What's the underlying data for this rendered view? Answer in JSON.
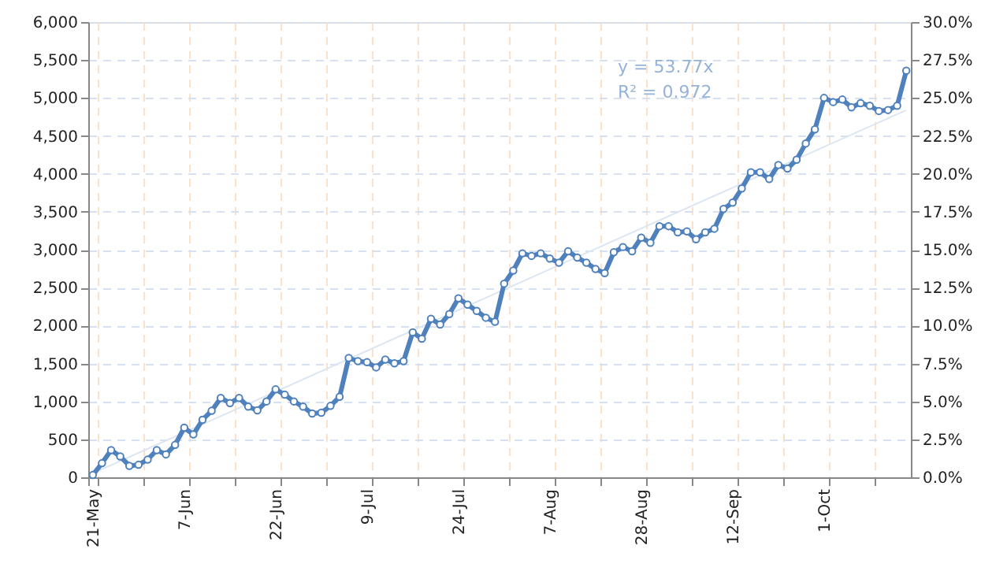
{
  "chart_data": {
    "type": "line",
    "categories": [
      "21-May",
      null,
      null,
      null,
      null,
      null,
      null,
      null,
      null,
      null,
      "7-Jun",
      null,
      null,
      null,
      null,
      null,
      null,
      null,
      null,
      null,
      "22-Jun",
      null,
      null,
      null,
      null,
      null,
      null,
      null,
      null,
      null,
      "9-Jul",
      null,
      null,
      null,
      null,
      null,
      null,
      null,
      null,
      null,
      "24-Jul",
      null,
      null,
      null,
      null,
      null,
      null,
      null,
      null,
      null,
      "7-Aug",
      null,
      null,
      null,
      null,
      null,
      null,
      null,
      null,
      null,
      "28-Aug",
      null,
      null,
      null,
      null,
      null,
      null,
      null,
      null,
      null,
      "12-Sep",
      null,
      null,
      null,
      null,
      null,
      null,
      null,
      null,
      null,
      "1-Oct",
      null,
      null,
      null,
      null,
      null,
      null,
      null,
      null,
      null
    ],
    "series": [
      {
        "color": "#4f81bd",
        "marker": "circle",
        "values": [
          30,
          186,
          358,
          275,
          151,
          165,
          234,
          358,
          302,
          427,
          654,
          565,
          758,
          876,
          1047,
          979,
          1047,
          931,
          882,
          1000,
          1159,
          1089,
          1000,
          931,
          840,
          852,
          941,
          1062,
          1573,
          1531,
          1517,
          1449,
          1552,
          1503,
          1531,
          1910,
          1827,
          2090,
          2014,
          2152,
          2359,
          2276,
          2193,
          2103,
          2049,
          2552,
          2724,
          2952,
          2918,
          2952,
          2883,
          2828,
          2980,
          2897,
          2828,
          2745,
          2690,
          2966,
          3035,
          2980,
          3159,
          3090,
          3310,
          3310,
          3228,
          3241,
          3138,
          3228,
          3276,
          3538,
          3621,
          3807,
          4020,
          4020,
          3931,
          4117,
          4069,
          4186,
          4400,
          4586,
          5000,
          4945,
          4979,
          4876,
          4931,
          4897,
          4828,
          4841,
          4897,
          5359
        ]
      },
      {
        "type": "line",
        "color": "#dce6f2",
        "marker": "none",
        "values": [
          53.77,
          null,
          null,
          null,
          null,
          null,
          null,
          null,
          null,
          null,
          null,
          null,
          null,
          null,
          null,
          null,
          null,
          null,
          null,
          null,
          null,
          null,
          null,
          null,
          null,
          null,
          null,
          null,
          null,
          null,
          null,
          null,
          null,
          null,
          null,
          null,
          null,
          null,
          null,
          null,
          null,
          null,
          null,
          null,
          null,
          null,
          null,
          null,
          null,
          null,
          null,
          null,
          null,
          null,
          null,
          null,
          null,
          null,
          null,
          null,
          null,
          null,
          null,
          null,
          null,
          null,
          null,
          null,
          null,
          null,
          null,
          null,
          null,
          null,
          null,
          null,
          null,
          null,
          null,
          null,
          null,
          null,
          null,
          null,
          null,
          null,
          null,
          null,
          null,
          4839.3
        ]
      }
    ],
    "ylim": [
      0,
      6000
    ],
    "yticks": [
      {
        "value": 0,
        "label": "0"
      },
      {
        "value": 500,
        "label": "500"
      },
      {
        "value": 1000,
        "label": "1,000"
      },
      {
        "value": 1500,
        "label": "1,500"
      },
      {
        "value": 2000,
        "label": "2,000"
      },
      {
        "value": 2500,
        "label": "2,500"
      },
      {
        "value": 3000,
        "label": "3,000"
      },
      {
        "value": 3500,
        "label": "3,500"
      },
      {
        "value": 4000,
        "label": "4,000"
      },
      {
        "value": 4500,
        "label": "4,500"
      },
      {
        "value": 5000,
        "label": "5,000"
      },
      {
        "value": 5500,
        "label": "5,500"
      },
      {
        "value": 6000,
        "label": "6,000"
      }
    ],
    "y2lim": [
      0,
      30
    ],
    "y2ticks": [
      {
        "value": 0,
        "label": "0.0%"
      },
      {
        "value": 2.5,
        "label": "2.5%"
      },
      {
        "value": 5,
        "label": "5.0%"
      },
      {
        "value": 7.5,
        "label": "7.5%"
      },
      {
        "value": 10,
        "label": "10.0%"
      },
      {
        "value": 12.5,
        "label": "12.5%"
      },
      {
        "value": 15,
        "label": "15.0%"
      },
      {
        "value": 17.5,
        "label": "17.5%"
      },
      {
        "value": 20,
        "label": "20.0%"
      },
      {
        "value": 22.5,
        "label": "22.5%"
      },
      {
        "value": 25,
        "label": "25.0%"
      },
      {
        "value": 27.5,
        "label": "27.5%"
      },
      {
        "value": 30,
        "label": "30.0%"
      }
    ],
    "annotations": [
      "y = 53.77x",
      "R² = 0.972"
    ],
    "grid": true,
    "line_style": "solid"
  }
}
